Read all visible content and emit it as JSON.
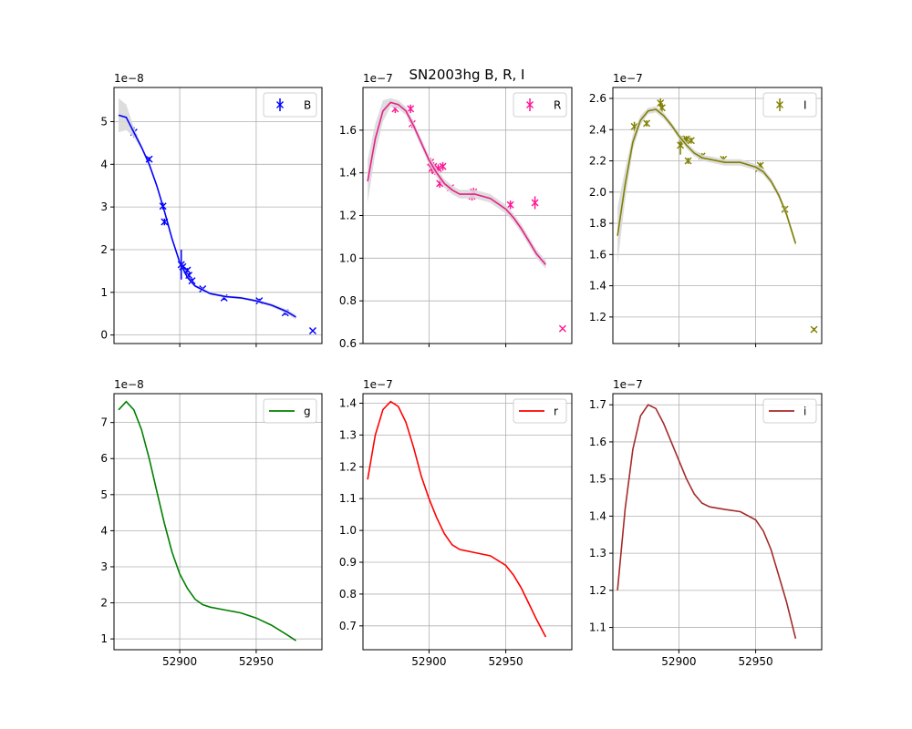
{
  "figure": {
    "title": "SN2003hg  B, R, I"
  },
  "chart_data": [
    {
      "type": "scatter",
      "panel": "B",
      "xlim": [
        52857,
        52993
      ],
      "ylim": [
        -0.2,
        5.8
      ],
      "exponent_label": "1e−8",
      "xticks": [
        52900,
        52950
      ],
      "xtick_labels": [
        "",
        ""
      ],
      "yticks": [
        0,
        1,
        2,
        3,
        4,
        5
      ],
      "grid": true,
      "legend_loc": "upper right",
      "colors": {
        "marker": "#0000ff",
        "fit": "#0000ff",
        "band": "#d9d9d9"
      },
      "series": [
        {
          "name": "B",
          "kind": "points",
          "x": [
            52870,
            52880,
            52889,
            52890,
            52901,
            52902,
            52905,
            52906,
            52908,
            52915,
            52929,
            52952,
            52969,
            52987
          ],
          "y": [
            4.75,
            4.12,
            3.02,
            2.65,
            1.65,
            1.6,
            1.52,
            1.4,
            1.27,
            1.08,
            0.87,
            0.8,
            0.52,
            0.1
          ],
          "yerr": [
            0.12,
            0.05,
            0.08,
            0.08,
            0.35,
            0.05,
            0.05,
            0.05,
            0.05,
            0.03,
            0.05,
            0.05,
            0.05,
            0.0
          ]
        },
        {
          "kind": "fit",
          "x": [
            52860,
            52865,
            52870,
            52875,
            52880,
            52885,
            52890,
            52895,
            52900,
            52905,
            52910,
            52920,
            52930,
            52940,
            52950,
            52960,
            52970,
            52976
          ],
          "y": [
            5.15,
            5.1,
            4.75,
            4.4,
            4.0,
            3.5,
            2.9,
            2.25,
            1.7,
            1.35,
            1.15,
            0.97,
            0.9,
            0.87,
            0.8,
            0.7,
            0.55,
            0.42
          ],
          "band": [
            0.4,
            0.3,
            0.12,
            0.05,
            0.04,
            0.04,
            0.04,
            0.04,
            0.04,
            0.04,
            0.03,
            0.03,
            0.03,
            0.03,
            0.03,
            0.04,
            0.05,
            0.06
          ]
        }
      ]
    },
    {
      "type": "scatter",
      "panel": "R",
      "xlim": [
        52857,
        52993
      ],
      "ylim": [
        0.6,
        1.8
      ],
      "exponent_label": "1e−7",
      "xticks": [
        52900,
        52950
      ],
      "xtick_labels": [
        "",
        ""
      ],
      "yticks": [
        0.6,
        0.8,
        1.0,
        1.2,
        1.4,
        1.6
      ],
      "grid": true,
      "legend_loc": "upper right",
      "colors": {
        "marker": "#ff1493",
        "fit": "#e91e8c",
        "band": "#d9d9d9"
      },
      "series": [
        {
          "name": "R",
          "kind": "points",
          "x": [
            52878,
            52888,
            52889,
            52901,
            52902,
            52903,
            52904,
            52906,
            52907,
            52909,
            52914,
            52928,
            52929,
            52953,
            52969,
            52987
          ],
          "y": [
            1.7,
            1.7,
            1.63,
            1.45,
            1.42,
            1.43,
            1.41,
            1.42,
            1.35,
            1.43,
            1.33,
            1.29,
            1.31,
            1.25,
            1.26,
            0.67
          ],
          "yerr": [
            0.02,
            0.02,
            0.02,
            0.02,
            0.02,
            0.02,
            0.02,
            0.02,
            0.02,
            0.02,
            0.01,
            0.02,
            0.02,
            0.02,
            0.03,
            0.0
          ]
        },
        {
          "kind": "fit",
          "x": [
            52860,
            52865,
            52870,
            52875,
            52880,
            52885,
            52890,
            52895,
            52900,
            52905,
            52910,
            52915,
            52920,
            52930,
            52940,
            52950,
            52955,
            52960,
            52965,
            52970,
            52976
          ],
          "y": [
            1.36,
            1.56,
            1.69,
            1.73,
            1.72,
            1.69,
            1.62,
            1.54,
            1.46,
            1.4,
            1.35,
            1.32,
            1.3,
            1.3,
            1.28,
            1.23,
            1.19,
            1.14,
            1.08,
            1.02,
            0.97
          ],
          "band": [
            0.1,
            0.07,
            0.05,
            0.02,
            0.02,
            0.02,
            0.02,
            0.02,
            0.02,
            0.02,
            0.02,
            0.02,
            0.02,
            0.02,
            0.02,
            0.02,
            0.02,
            0.02,
            0.02,
            0.02,
            0.02
          ]
        }
      ]
    },
    {
      "type": "scatter",
      "panel": "I",
      "xlim": [
        52857,
        52993
      ],
      "ylim": [
        1.03,
        2.67
      ],
      "exponent_label": "1e−7",
      "xticks": [
        52900,
        52950
      ],
      "xtick_labels": [
        "",
        ""
      ],
      "yticks": [
        1.2,
        1.4,
        1.6,
        1.8,
        2.0,
        2.2,
        2.4,
        2.6
      ],
      "grid": true,
      "legend_loc": "upper right",
      "colors": {
        "marker": "#808000",
        "fit": "#808000",
        "band": "#d9d9d9"
      },
      "series": [
        {
          "name": "I",
          "kind": "points",
          "x": [
            52871,
            52879,
            52888,
            52889,
            52901,
            52902,
            52904,
            52905,
            52906,
            52908,
            52915,
            52929,
            52952,
            52953,
            52969,
            52988
          ],
          "y": [
            2.42,
            2.44,
            2.57,
            2.54,
            2.3,
            2.33,
            2.33,
            2.34,
            2.2,
            2.33,
            2.23,
            2.21,
            2.15,
            2.17,
            1.89,
            1.12
          ],
          "yerr": [
            0.03,
            0.02,
            0.03,
            0.03,
            0.06,
            0.03,
            0.02,
            0.02,
            0.02,
            0.02,
            0.02,
            0.02,
            0.02,
            0.02,
            0.02,
            0.01
          ]
        },
        {
          "kind": "fit",
          "x": [
            52860,
            52865,
            52870,
            52875,
            52880,
            52885,
            52890,
            52895,
            52900,
            52905,
            52910,
            52915,
            52920,
            52930,
            52940,
            52950,
            52955,
            52960,
            52965,
            52970,
            52976
          ],
          "y": [
            1.72,
            2.05,
            2.32,
            2.46,
            2.52,
            2.53,
            2.49,
            2.43,
            2.36,
            2.3,
            2.25,
            2.22,
            2.21,
            2.19,
            2.19,
            2.16,
            2.13,
            2.07,
            1.98,
            1.86,
            1.67
          ],
          "band": [
            0.18,
            0.1,
            0.05,
            0.03,
            0.02,
            0.02,
            0.02,
            0.02,
            0.02,
            0.02,
            0.02,
            0.02,
            0.02,
            0.02,
            0.02,
            0.02,
            0.02,
            0.02,
            0.02,
            0.02,
            0.02
          ]
        }
      ]
    },
    {
      "type": "line",
      "panel": "g",
      "xlim": [
        52857,
        52993
      ],
      "ylim": [
        0.7,
        7.8
      ],
      "exponent_label": "1e−8",
      "xticks": [
        52900,
        52950
      ],
      "xtick_labels": [
        "52900",
        "52950"
      ],
      "yticks": [
        1,
        2,
        3,
        4,
        5,
        6,
        7
      ],
      "grid": true,
      "legend_loc": "upper right",
      "colors": {
        "line": "#008000"
      },
      "series": [
        {
          "name": "g",
          "kind": "line",
          "x": [
            52860,
            52865,
            52870,
            52875,
            52880,
            52885,
            52890,
            52895,
            52900,
            52905,
            52910,
            52915,
            52920,
            52930,
            52940,
            52950,
            52960,
            52970,
            52976
          ],
          "y": [
            7.35,
            7.58,
            7.35,
            6.8,
            6.0,
            5.1,
            4.2,
            3.4,
            2.8,
            2.4,
            2.1,
            1.95,
            1.88,
            1.8,
            1.72,
            1.58,
            1.38,
            1.12,
            0.95
          ]
        }
      ]
    },
    {
      "type": "line",
      "panel": "r",
      "xlim": [
        52857,
        52993
      ],
      "ylim": [
        0.625,
        1.43
      ],
      "exponent_label": "1e−7",
      "xticks": [
        52900,
        52950
      ],
      "xtick_labels": [
        "52900",
        "52950"
      ],
      "yticks": [
        0.7,
        0.8,
        0.9,
        1.0,
        1.1,
        1.2,
        1.3,
        1.4
      ],
      "grid": true,
      "legend_loc": "upper right",
      "colors": {
        "line": "#ff0000"
      },
      "series": [
        {
          "name": "r",
          "kind": "line",
          "x": [
            52860,
            52865,
            52870,
            52875,
            52880,
            52885,
            52890,
            52895,
            52900,
            52905,
            52910,
            52915,
            52920,
            52930,
            52940,
            52950,
            52955,
            52960,
            52965,
            52970,
            52976
          ],
          "y": [
            1.16,
            1.3,
            1.38,
            1.405,
            1.39,
            1.34,
            1.26,
            1.17,
            1.1,
            1.04,
            0.99,
            0.955,
            0.94,
            0.93,
            0.92,
            0.89,
            0.86,
            0.82,
            0.77,
            0.72,
            0.665
          ]
        }
      ]
    },
    {
      "type": "line",
      "panel": "i",
      "xlim": [
        52857,
        52993
      ],
      "ylim": [
        1.04,
        1.73
      ],
      "exponent_label": "1e−7",
      "xticks": [
        52900,
        52950
      ],
      "xtick_labels": [
        "52900",
        "52950"
      ],
      "yticks": [
        1.1,
        1.2,
        1.3,
        1.4,
        1.5,
        1.6,
        1.7
      ],
      "grid": true,
      "legend_loc": "upper right",
      "colors": {
        "line": "#a52a2a"
      },
      "series": [
        {
          "name": "i",
          "kind": "line",
          "x": [
            52860,
            52865,
            52870,
            52875,
            52880,
            52885,
            52890,
            52895,
            52900,
            52905,
            52910,
            52915,
            52920,
            52930,
            52940,
            52950,
            52955,
            52960,
            52965,
            52970,
            52976
          ],
          "y": [
            1.2,
            1.42,
            1.58,
            1.67,
            1.7,
            1.69,
            1.65,
            1.6,
            1.55,
            1.5,
            1.46,
            1.435,
            1.425,
            1.418,
            1.412,
            1.39,
            1.36,
            1.31,
            1.24,
            1.17,
            1.07
          ]
        }
      ]
    }
  ]
}
